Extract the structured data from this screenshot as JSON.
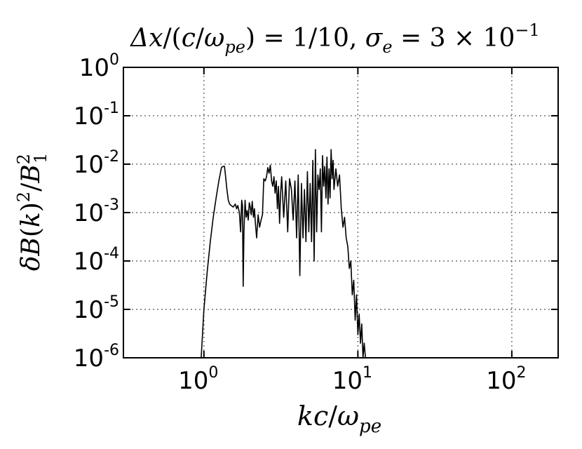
{
  "chart_data": {
    "type": "line",
    "title": "Δx/(c/ω_pe) = 1/10, σ_e = 3 × 10^-1",
    "xlabel": "kc/ω_pe",
    "ylabel": "δB(k)²/B₁²",
    "x_scale": "log",
    "y_scale": "log",
    "xlim": [
      0.3,
      200
    ],
    "ylim": [
      1e-06,
      1
    ],
    "grid": true,
    "x_ticks": [
      {
        "base": "10",
        "exp": "0"
      },
      {
        "base": "10",
        "exp": "1"
      },
      {
        "base": "10",
        "exp": "2"
      }
    ],
    "y_ticks": [
      {
        "base": "10",
        "exp": "0"
      },
      {
        "base": "10",
        "exp": "-1"
      },
      {
        "base": "10",
        "exp": "-2"
      },
      {
        "base": "10",
        "exp": "-3"
      },
      {
        "base": "10",
        "exp": "-4"
      },
      {
        "base": "10",
        "exp": "-5"
      },
      {
        "base": "10",
        "exp": "-6"
      }
    ],
    "series": [
      {
        "color": "#000000",
        "x": [
          0.96,
          1.0,
          1.05,
          1.1,
          1.15,
          1.2,
          1.25,
          1.3,
          1.33,
          1.36,
          1.38,
          1.41,
          1.44,
          1.47,
          1.5,
          1.55,
          1.6,
          1.63,
          1.66,
          1.7,
          1.73,
          1.76,
          1.78,
          1.8,
          1.82,
          1.85,
          1.88,
          1.91,
          1.94,
          1.97,
          2.0,
          2.03,
          2.06,
          2.1,
          2.13,
          2.16,
          2.2,
          2.25,
          2.3,
          2.35,
          2.4,
          2.45,
          2.5,
          2.55,
          2.6,
          2.65,
          2.7,
          2.75,
          2.8,
          2.85,
          2.9,
          2.95,
          3.0,
          3.05,
          3.1,
          3.15,
          3.2,
          3.3,
          3.4,
          3.5,
          3.6,
          3.7,
          3.8,
          3.9,
          4.0,
          4.1,
          4.2,
          4.3,
          4.4,
          4.5,
          4.6,
          4.7,
          4.8,
          4.9,
          5.0,
          5.1,
          5.2,
          5.3,
          5.4,
          5.5,
          5.6,
          5.7,
          5.8,
          5.9,
          6.0,
          6.1,
          6.2,
          6.3,
          6.4,
          6.5,
          6.6,
          6.7,
          6.8,
          6.9,
          7.0,
          7.2,
          7.4,
          7.6,
          7.8,
          8.0,
          8.2,
          8.4,
          8.6,
          8.8,
          9.0,
          9.2,
          9.4,
          9.6,
          9.8,
          10.0,
          10.2,
          10.4,
          10.6,
          10.8,
          11.0,
          11.2
        ],
        "values": [
          1e-06,
          1e-05,
          6e-05,
          0.00025,
          0.0008,
          0.002,
          0.0045,
          0.0085,
          0.009,
          0.009,
          0.006,
          0.003,
          0.0018,
          0.0015,
          0.0014,
          0.0013,
          0.0015,
          0.0012,
          0.0014,
          0.001,
          0.0004,
          0.0018,
          0.0014,
          3e-05,
          0.0004,
          0.0018,
          0.0008,
          0.0011,
          0.0007,
          0.0016,
          0.0013,
          0.0009,
          0.0017,
          0.0008,
          0.0012,
          0.0006,
          0.0003,
          0.0009,
          0.0005,
          0.0007,
          0.0009,
          0.005,
          0.0045,
          0.0055,
          0.0085,
          0.0065,
          0.0095,
          0.0045,
          0.0035,
          0.0055,
          0.0025,
          0.0045,
          0.0012,
          0.0035,
          0.0006,
          0.0025,
          0.0055,
          0.0008,
          0.0045,
          0.0004,
          0.005,
          0.003,
          0.0007,
          0.0045,
          0.0003,
          0.006,
          5e-05,
          0.004,
          0.0003,
          0.003,
          0.00025,
          0.007,
          0.0004,
          0.004,
          0.00025,
          0.012,
          0.0001,
          0.02,
          0.0004,
          0.006,
          0.003,
          0.008,
          0.0004,
          0.015,
          0.0035,
          0.009,
          0.002,
          0.014,
          0.0015,
          0.008,
          0.002,
          0.02,
          0.005,
          0.012,
          0.003,
          0.008,
          0.0035,
          0.006,
          0.0012,
          0.0005,
          0.0008,
          0.0003,
          0.0002,
          7e-05,
          0.0001,
          2e-05,
          4e-05,
          6e-06,
          2e-05,
          3e-06,
          8e-06,
          2e-06,
          5e-06,
          1e-06,
          2e-06,
          1e-06
        ]
      }
    ]
  }
}
